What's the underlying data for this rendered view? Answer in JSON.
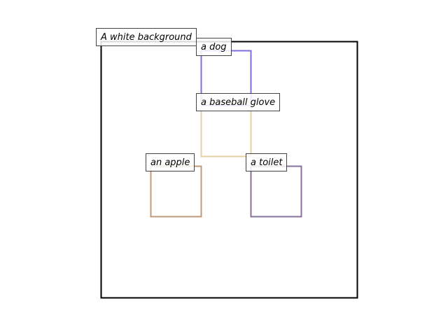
{
  "scene": {
    "background_label": "A white background",
    "frame_color": "#000000"
  },
  "objects": [
    {
      "id": "dog",
      "label": "a dog",
      "color": "#7b6fe0"
    },
    {
      "id": "glove",
      "label": "a baseball glove",
      "color": "#e6cfa0"
    },
    {
      "id": "apple",
      "label": "an apple",
      "color": "#c19a78"
    },
    {
      "id": "toilet",
      "label": "a toilet",
      "color": "#88709a"
    }
  ]
}
